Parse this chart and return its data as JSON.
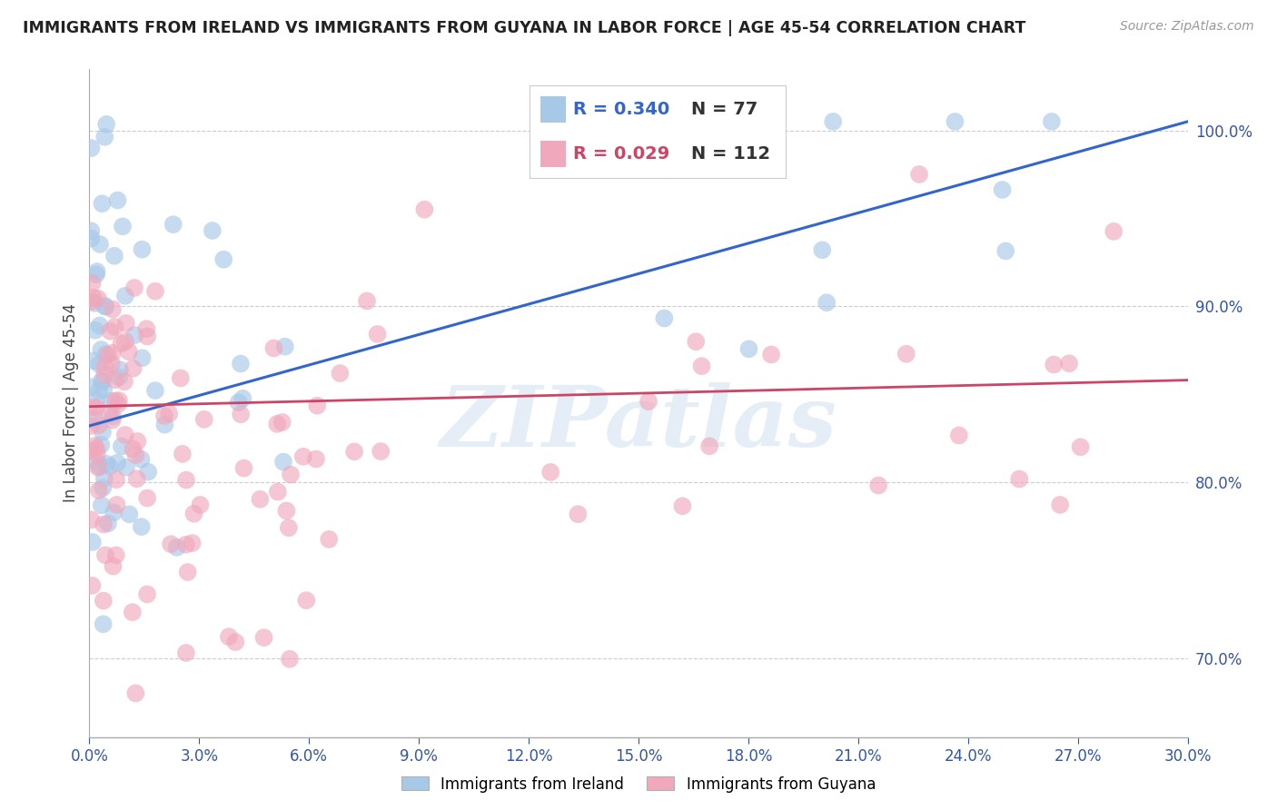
{
  "title": "IMMIGRANTS FROM IRELAND VS IMMIGRANTS FROM GUYANA IN LABOR FORCE | AGE 45-54 CORRELATION CHART",
  "source": "Source: ZipAtlas.com",
  "ylabel_label": "In Labor Force | Age 45-54",
  "legend_ireland": "Immigrants from Ireland",
  "legend_guyana": "Immigrants from Guyana",
  "ireland_R": "0.340",
  "ireland_N": "77",
  "guyana_R": "0.029",
  "guyana_N": "112",
  "ireland_color": "#a8c8e8",
  "guyana_color": "#f0a8bc",
  "ireland_line_color": "#3366cc",
  "guyana_line_color": "#cc4466",
  "bg_color": "#ffffff",
  "xmin": 0.0,
  "xmax": 0.3,
  "ymin": 0.655,
  "ymax": 1.035,
  "ireland_line_x0": 0.0,
  "ireland_line_y0": 0.832,
  "ireland_line_x1": 0.3,
  "ireland_line_y1": 1.005,
  "guyana_line_x0": 0.0,
  "guyana_line_y0": 0.843,
  "guyana_line_x1": 0.3,
  "guyana_line_y1": 0.858
}
